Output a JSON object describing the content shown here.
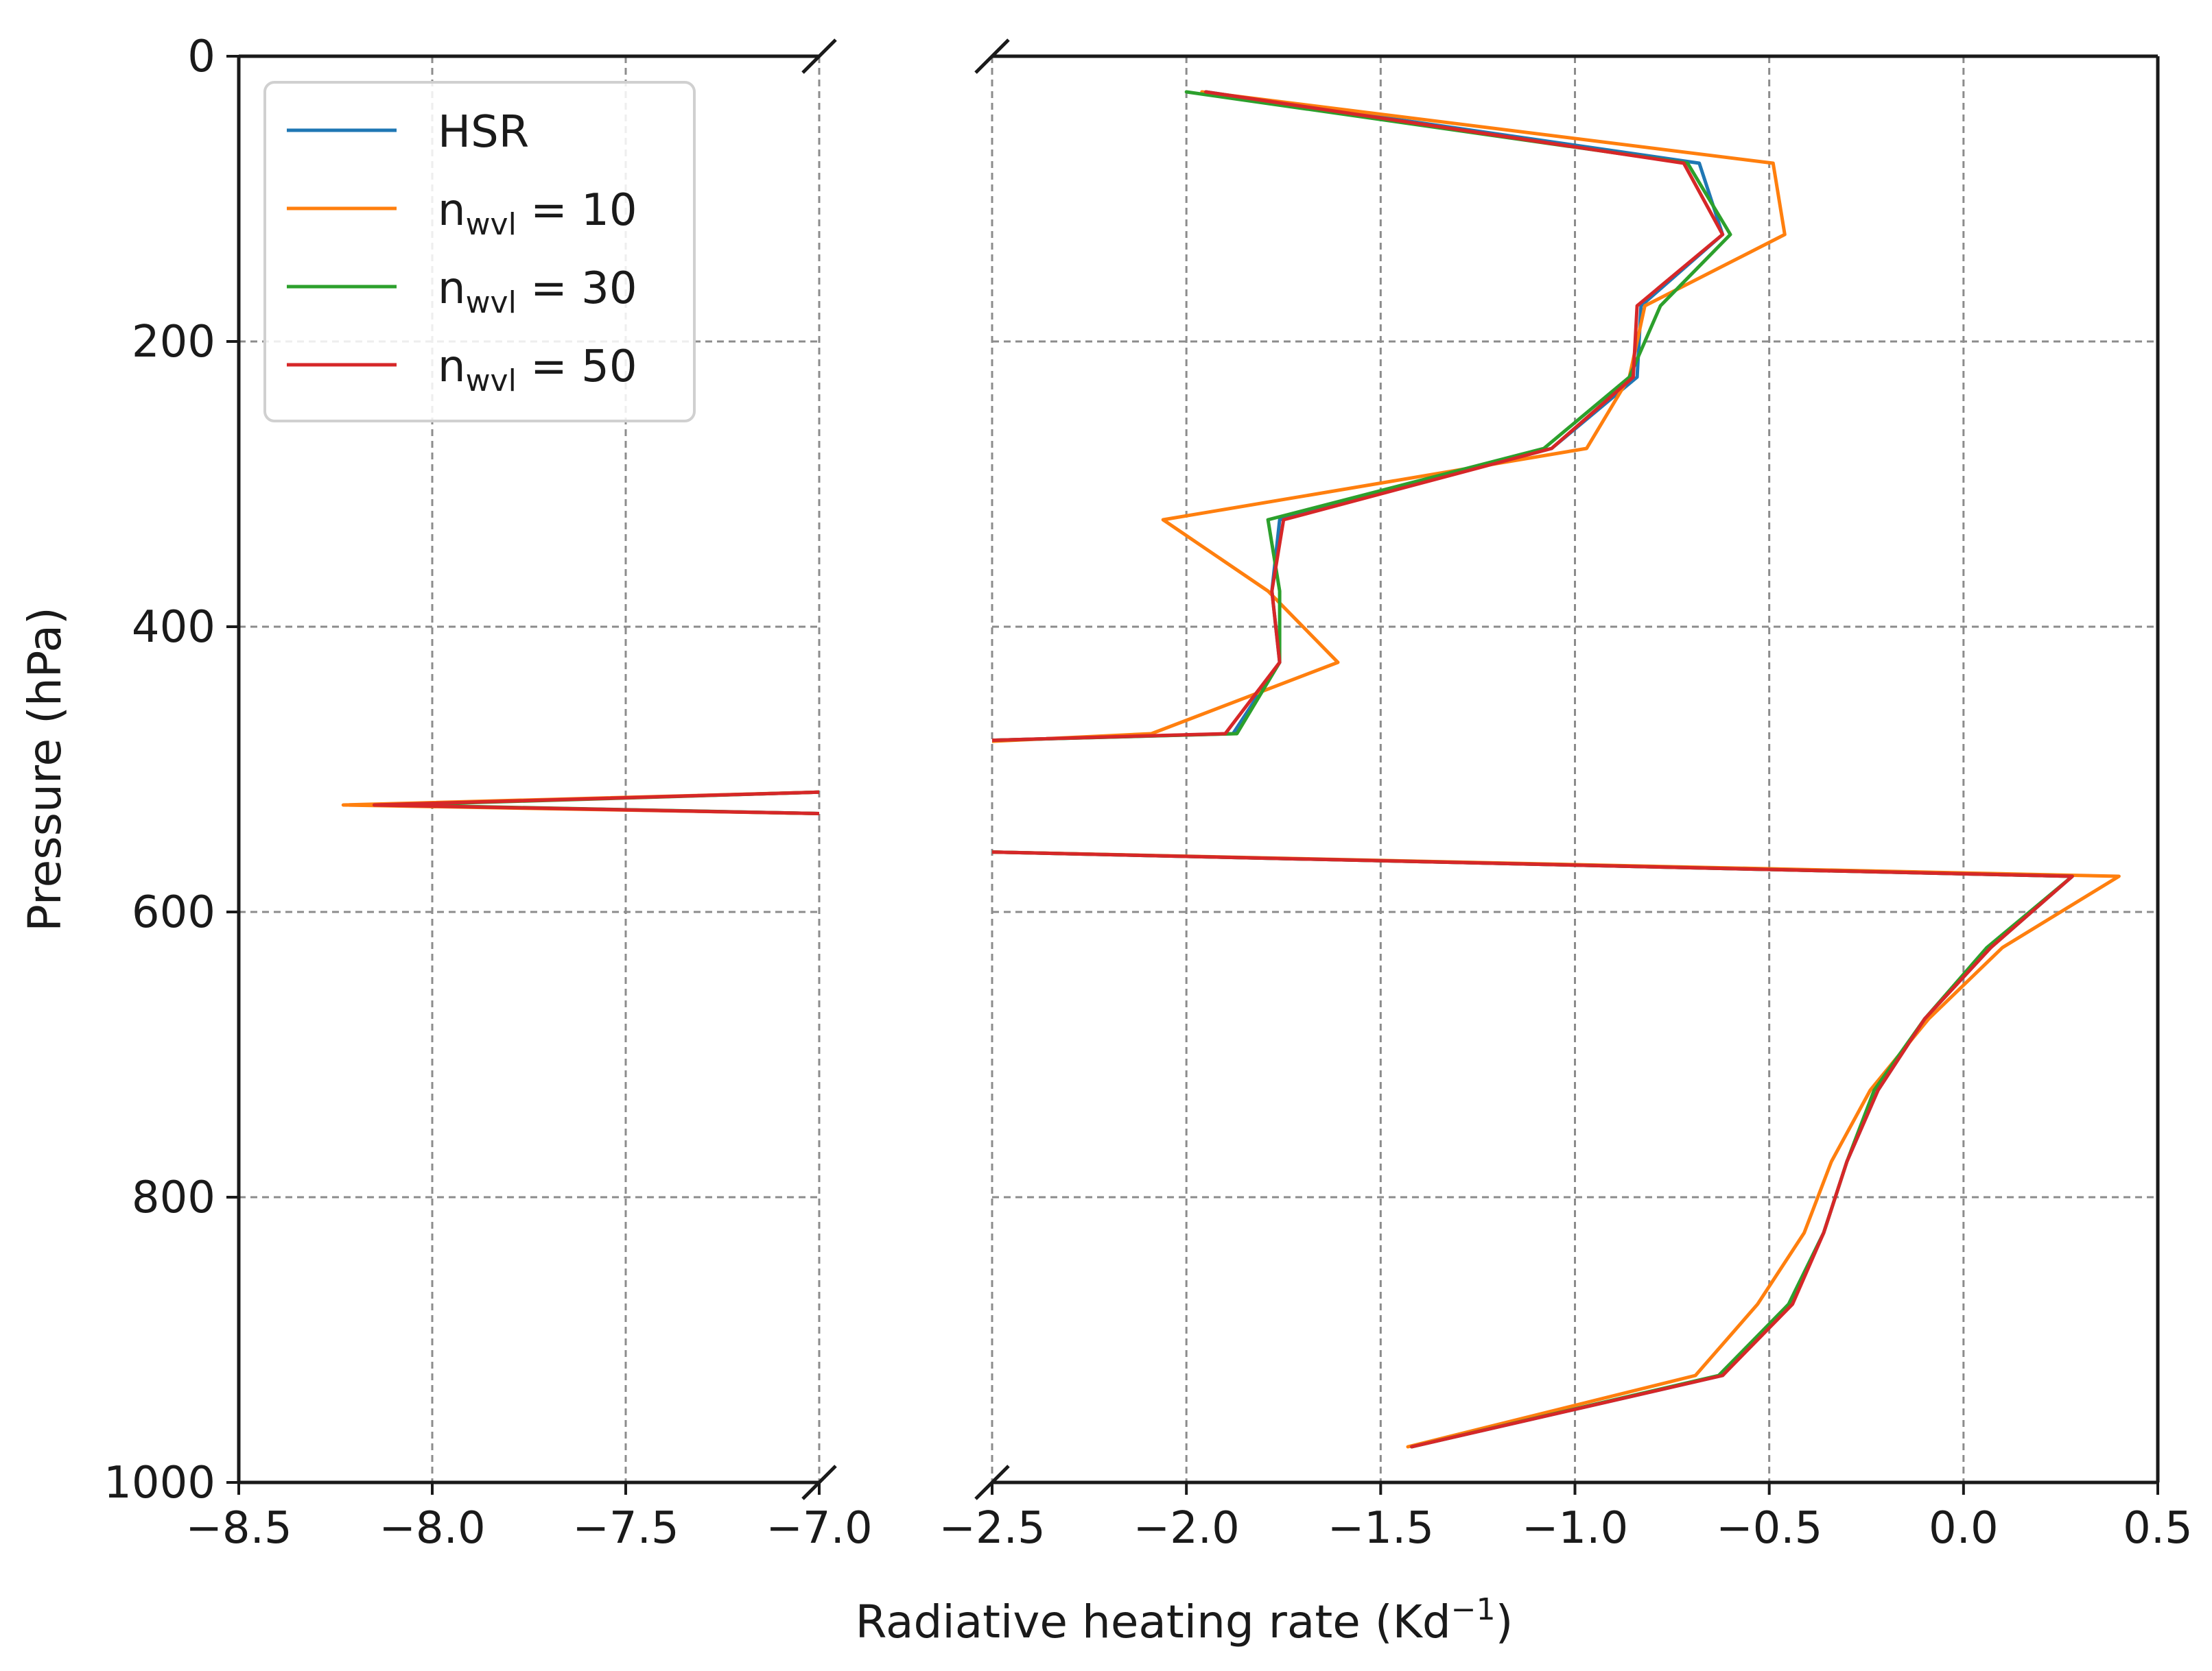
{
  "chart_data": {
    "type": "line",
    "orientation": "vertical-profile",
    "xlabel": "Radiative heating rate (Kd",
    "xlabel_superscript": "−1",
    "xlabel_suffix": ")",
    "ylabel": "Pressure (hPa)",
    "ylim": [
      1000,
      0
    ],
    "y_inverted": true,
    "yticks": [
      0,
      200,
      400,
      600,
      800,
      1000
    ],
    "ytick_labels": [
      "0",
      "200",
      "400",
      "600",
      "800",
      "1000"
    ],
    "broken_x_axis": true,
    "panels": [
      {
        "xlim": [
          -8.5,
          -7.0
        ],
        "xticks": [
          -8.5,
          -8.0,
          -7.5,
          -7.0
        ],
        "xtick_labels": [
          "−8.5",
          "−8.0",
          "−7.5",
          "−7.0"
        ]
      },
      {
        "xlim": [
          -2.5,
          0.5
        ],
        "xticks": [
          -2.5,
          -2.0,
          -1.5,
          -1.0,
          -0.5,
          0.0,
          0.5
        ],
        "xtick_labels": [
          "−2.5",
          "−2.0",
          "−1.5",
          "−1.0",
          "−0.5",
          "0.0",
          "0.5"
        ]
      }
    ],
    "grid": true,
    "grid_style": "dashed",
    "legend_position": "top-left",
    "legend": [
      {
        "label": "HSR",
        "base": "",
        "sub": "",
        "tail": ""
      },
      {
        "label": "",
        "base": "n",
        "sub": "wvl",
        "tail": " = 10"
      },
      {
        "label": "",
        "base": "n",
        "sub": "wvl",
        "tail": " = 30"
      },
      {
        "label": "",
        "base": "n",
        "sub": "wvl",
        "tail": " = 50"
      }
    ],
    "series": [
      {
        "key": "hsr",
        "color": "#1f77b4",
        "points": [
          [
            -1.95,
            25
          ],
          [
            -0.68,
            75
          ],
          [
            -0.62,
            125
          ],
          [
            -0.83,
            175
          ],
          [
            -0.84,
            225
          ],
          [
            -1.06,
            275
          ],
          [
            -1.76,
            325
          ],
          [
            -1.78,
            375
          ],
          [
            -1.76,
            425
          ],
          [
            -1.88,
            475
          ],
          [
            -2.55,
            480
          ],
          [
            -3.5,
            484
          ],
          [
            -7.0,
            516
          ],
          [
            -8.15,
            525
          ],
          [
            -7.0,
            531
          ],
          [
            -3.5,
            552
          ],
          [
            -2.5,
            558
          ],
          [
            0.28,
            575
          ],
          [
            0.07,
            625
          ],
          [
            -0.1,
            675
          ],
          [
            -0.22,
            725
          ],
          [
            -0.3,
            775
          ],
          [
            -0.36,
            825
          ],
          [
            -0.45,
            875
          ],
          [
            -0.62,
            925
          ],
          [
            -1.42,
            975
          ]
        ]
      },
      {
        "key": "n10",
        "color": "#ff7f0e",
        "points": [
          [
            -1.96,
            25
          ],
          [
            -0.49,
            75
          ],
          [
            -0.46,
            125
          ],
          [
            -0.82,
            175
          ],
          [
            -0.86,
            225
          ],
          [
            -0.97,
            275
          ],
          [
            -2.06,
            325
          ],
          [
            -1.79,
            375
          ],
          [
            -1.61,
            425
          ],
          [
            -2.09,
            475
          ],
          [
            -2.55,
            481
          ],
          [
            -3.5,
            485
          ],
          [
            -7.0,
            516
          ],
          [
            -8.23,
            525
          ],
          [
            -7.0,
            531
          ],
          [
            -3.5,
            552
          ],
          [
            -2.5,
            558
          ],
          [
            0.4,
            575
          ],
          [
            0.1,
            625
          ],
          [
            -0.09,
            675
          ],
          [
            -0.24,
            725
          ],
          [
            -0.34,
            775
          ],
          [
            -0.41,
            825
          ],
          [
            -0.53,
            875
          ],
          [
            -0.69,
            925
          ],
          [
            -1.43,
            975
          ]
        ]
      },
      {
        "key": "n30",
        "color": "#2ca02c",
        "points": [
          [
            -2.0,
            25
          ],
          [
            -0.71,
            75
          ],
          [
            -0.6,
            125
          ],
          [
            -0.78,
            175
          ],
          [
            -0.86,
            225
          ],
          [
            -1.08,
            275
          ],
          [
            -1.79,
            325
          ],
          [
            -1.76,
            375
          ],
          [
            -1.76,
            425
          ],
          [
            -1.87,
            475
          ],
          [
            -2.55,
            480
          ],
          [
            -3.5,
            484
          ],
          [
            -7.0,
            516
          ],
          [
            -8.1,
            525
          ],
          [
            -7.0,
            531
          ],
          [
            -3.5,
            552
          ],
          [
            -2.5,
            558
          ],
          [
            0.28,
            575
          ],
          [
            0.06,
            625
          ],
          [
            -0.1,
            675
          ],
          [
            -0.23,
            725
          ],
          [
            -0.3,
            775
          ],
          [
            -0.36,
            825
          ],
          [
            -0.45,
            875
          ],
          [
            -0.63,
            925
          ],
          [
            -1.42,
            975
          ]
        ]
      },
      {
        "key": "n50",
        "color": "#d62728",
        "points": [
          [
            -1.95,
            25
          ],
          [
            -0.72,
            75
          ],
          [
            -0.62,
            125
          ],
          [
            -0.84,
            175
          ],
          [
            -0.85,
            225
          ],
          [
            -1.06,
            275
          ],
          [
            -1.75,
            325
          ],
          [
            -1.78,
            375
          ],
          [
            -1.76,
            425
          ],
          [
            -1.9,
            475
          ],
          [
            -2.55,
            480
          ],
          [
            -3.5,
            484
          ],
          [
            -7.0,
            516
          ],
          [
            -8.15,
            525
          ],
          [
            -7.0,
            531
          ],
          [
            -3.5,
            552
          ],
          [
            -2.5,
            558
          ],
          [
            0.28,
            575
          ],
          [
            0.07,
            625
          ],
          [
            -0.1,
            675
          ],
          [
            -0.22,
            725
          ],
          [
            -0.3,
            775
          ],
          [
            -0.36,
            825
          ],
          [
            -0.44,
            875
          ],
          [
            -0.62,
            925
          ],
          [
            -1.42,
            975
          ]
        ]
      }
    ]
  }
}
